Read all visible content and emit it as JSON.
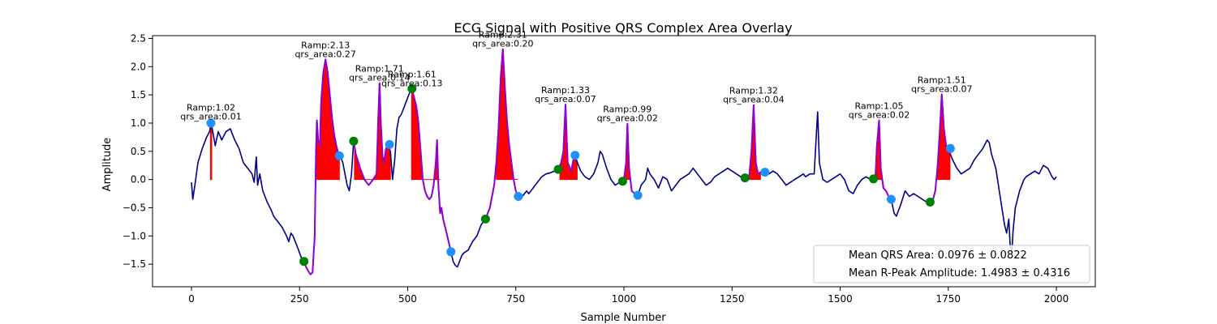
{
  "chart_data": {
    "type": "line",
    "title": "ECG Signal with Positive QRS Complex Area Overlay",
    "xlabel": "Sample Number",
    "ylabel": "Amplitude",
    "xlim": [
      -90,
      2090
    ],
    "ylim": [
      -1.9,
      2.55
    ],
    "xticks": [
      0,
      250,
      500,
      750,
      1000,
      1250,
      1500,
      1750,
      2000
    ],
    "xtick_labels": [
      "0",
      "250",
      "500",
      "750",
      "1000",
      "1250",
      "1500",
      "1750",
      "2000"
    ],
    "yticks": [
      -1.5,
      -1.0,
      -0.5,
      0.0,
      0.5,
      1.0,
      1.5,
      2.0,
      2.5
    ],
    "ytick_labels": [
      "−1.5",
      "−1.0",
      "−0.5",
      "0.0",
      "0.5",
      "1.0",
      "1.5",
      "2.0",
      "2.5"
    ],
    "grid": false,
    "colors": {
      "signal": "#00008b",
      "qrs_segment": "#9400d3",
      "area_fill": "#ff0000",
      "onset_marker": "#008000",
      "offset_marker": "#1e90ff"
    },
    "signal": {
      "name": "",
      "points": [
        [
          0,
          -0.05
        ],
        [
          3,
          -0.35
        ],
        [
          8,
          -0.1
        ],
        [
          15,
          0.3
        ],
        [
          25,
          0.55
        ],
        [
          35,
          0.75
        ],
        [
          42,
          0.85
        ],
        [
          45,
          1.0
        ],
        [
          48,
          0.9
        ],
        [
          55,
          0.6
        ],
        [
          62,
          0.85
        ],
        [
          70,
          0.7
        ],
        [
          80,
          0.85
        ],
        [
          90,
          0.9
        ],
        [
          100,
          0.7
        ],
        [
          110,
          0.55
        ],
        [
          120,
          0.3
        ],
        [
          130,
          0.2
        ],
        [
          140,
          0.1
        ],
        [
          145,
          -0.05
        ],
        [
          150,
          0.4
        ],
        [
          153,
          -0.1
        ],
        [
          158,
          0.1
        ],
        [
          165,
          -0.2
        ],
        [
          175,
          -0.4
        ],
        [
          185,
          -0.55
        ],
        [
          190,
          -0.65
        ],
        [
          200,
          -0.75
        ],
        [
          210,
          -0.85
        ],
        [
          220,
          -1.0
        ],
        [
          225,
          -1.1
        ],
        [
          230,
          -0.95
        ],
        [
          235,
          -1.0
        ],
        [
          240,
          -1.1
        ],
        [
          245,
          -1.2
        ],
        [
          250,
          -1.3
        ],
        [
          255,
          -1.4
        ],
        [
          260,
          -1.45
        ],
        [
          265,
          -1.55
        ],
        [
          270,
          -1.62
        ],
        [
          275,
          -1.68
        ],
        [
          280,
          -1.65
        ],
        [
          285,
          -1.0
        ],
        [
          288,
          0.5
        ],
        [
          290,
          1.05
        ],
        [
          293,
          0.7
        ],
        [
          297,
          0.6
        ],
        [
          300,
          1.4
        ],
        [
          305,
          1.9
        ],
        [
          310,
          2.13
        ],
        [
          315,
          1.9
        ],
        [
          320,
          1.5
        ],
        [
          325,
          1.1
        ],
        [
          330,
          0.8
        ],
        [
          335,
          0.6
        ],
        [
          340,
          0.45
        ],
        [
          345,
          0.4
        ],
        [
          350,
          0.3
        ],
        [
          355,
          0.1
        ],
        [
          360,
          -0.1
        ],
        [
          365,
          -0.2
        ],
        [
          370,
          0.1
        ],
        [
          375,
          0.68
        ],
        [
          380,
          0.45
        ],
        [
          390,
          0.2
        ],
        [
          400,
          0.0
        ],
        [
          410,
          -0.1
        ],
        [
          420,
          0.0
        ],
        [
          428,
          0.1
        ],
        [
          432,
          1.1
        ],
        [
          435,
          1.71
        ],
        [
          438,
          1.0
        ],
        [
          442,
          0.4
        ],
        [
          445,
          0.3
        ],
        [
          450,
          0.55
        ],
        [
          455,
          0.6
        ],
        [
          460,
          0.5
        ],
        [
          465,
          0.0
        ],
        [
          470,
          0.35
        ],
        [
          475,
          0.9
        ],
        [
          480,
          1.1
        ],
        [
          485,
          1.15
        ],
        [
          490,
          1.25
        ],
        [
          495,
          1.35
        ],
        [
          500,
          1.45
        ],
        [
          505,
          1.55
        ],
        [
          510,
          1.61
        ],
        [
          515,
          1.45
        ],
        [
          520,
          1.3
        ],
        [
          525,
          1.0
        ],
        [
          530,
          0.5
        ],
        [
          535,
          0.0
        ],
        [
          540,
          -0.2
        ],
        [
          545,
          -0.3
        ],
        [
          550,
          -0.35
        ],
        [
          555,
          -0.3
        ],
        [
          560,
          -0.1
        ],
        [
          565,
          0.3
        ],
        [
          568,
          0.7
        ],
        [
          571,
          -0.1
        ],
        [
          575,
          -0.6
        ],
        [
          578,
          -0.5
        ],
        [
          582,
          -0.7
        ],
        [
          590,
          -0.95
        ],
        [
          600,
          -1.28
        ],
        [
          605,
          -1.45
        ],
        [
          610,
          -1.52
        ],
        [
          615,
          -1.55
        ],
        [
          620,
          -1.45
        ],
        [
          625,
          -1.35
        ],
        [
          630,
          -1.3
        ],
        [
          640,
          -1.25
        ],
        [
          650,
          -1.1
        ],
        [
          660,
          -1.0
        ],
        [
          670,
          -0.8
        ],
        [
          680,
          -0.7
        ],
        [
          690,
          -0.5
        ],
        [
          700,
          -0.1
        ],
        [
          705,
          0.3
        ],
        [
          710,
          0.9
        ],
        [
          715,
          1.8
        ],
        [
          720,
          2.31
        ],
        [
          725,
          1.6
        ],
        [
          730,
          1.0
        ],
        [
          735,
          0.6
        ],
        [
          740,
          0.3
        ],
        [
          745,
          0.0
        ],
        [
          750,
          -0.2
        ],
        [
          755,
          -0.3
        ],
        [
          760,
          -0.28
        ],
        [
          765,
          -0.3
        ],
        [
          770,
          -0.25
        ],
        [
          775,
          -0.2
        ],
        [
          780,
          -0.25
        ],
        [
          790,
          -0.15
        ],
        [
          800,
          -0.05
        ],
        [
          810,
          0.05
        ],
        [
          820,
          0.1
        ],
        [
          830,
          0.12
        ],
        [
          840,
          0.15
        ],
        [
          848,
          0.18
        ],
        [
          855,
          0.3
        ],
        [
          860,
          0.5
        ],
        [
          865,
          1.33
        ],
        [
          870,
          0.3
        ],
        [
          878,
          0.15
        ],
        [
          885,
          0.42
        ],
        [
          890,
          0.35
        ],
        [
          900,
          0.15
        ],
        [
          910,
          0.05
        ],
        [
          920,
          0.0
        ],
        [
          930,
          0.1
        ],
        [
          940,
          0.3
        ],
        [
          945,
          0.5
        ],
        [
          950,
          0.45
        ],
        [
          960,
          0.2
        ],
        [
          970,
          0.0
        ],
        [
          980,
          -0.1
        ],
        [
          990,
          -0.05
        ],
        [
          997,
          -0.03
        ],
        [
          1000,
          0.0
        ],
        [
          1005,
          0.3
        ],
        [
          1008,
          0.99
        ],
        [
          1012,
          0.2
        ],
        [
          1018,
          -0.2
        ],
        [
          1025,
          -0.25
        ],
        [
          1032,
          -0.28
        ],
        [
          1040,
          -0.1
        ],
        [
          1050,
          0.0
        ],
        [
          1055,
          0.2
        ],
        [
          1060,
          0.1
        ],
        [
          1070,
          0.0
        ],
        [
          1080,
          -0.15
        ],
        [
          1090,
          0.05
        ],
        [
          1100,
          0.0
        ],
        [
          1110,
          -0.2
        ],
        [
          1120,
          -0.1
        ],
        [
          1130,
          0.0
        ],
        [
          1140,
          0.05
        ],
        [
          1150,
          0.1
        ],
        [
          1160,
          0.2
        ],
        [
          1170,
          0.1
        ],
        [
          1180,
          0.0
        ],
        [
          1190,
          -0.1
        ],
        [
          1200,
          -0.05
        ],
        [
          1210,
          0.05
        ],
        [
          1220,
          0.1
        ],
        [
          1230,
          0.15
        ],
        [
          1240,
          0.2
        ],
        [
          1250,
          0.15
        ],
        [
          1260,
          0.1
        ],
        [
          1270,
          0.05
        ],
        [
          1280,
          0.03
        ],
        [
          1290,
          0.08
        ],
        [
          1295,
          0.5
        ],
        [
          1300,
          1.32
        ],
        [
          1305,
          0.3
        ],
        [
          1310,
          0.1
        ],
        [
          1320,
          0.15
        ],
        [
          1325,
          0.13
        ],
        [
          1335,
          0.1
        ],
        [
          1345,
          0.15
        ],
        [
          1355,
          0.1
        ],
        [
          1365,
          0.0
        ],
        [
          1375,
          -0.1
        ],
        [
          1385,
          -0.05
        ],
        [
          1395,
          0.0
        ],
        [
          1405,
          0.05
        ],
        [
          1415,
          0.1
        ],
        [
          1420,
          0.05
        ],
        [
          1430,
          0.1
        ],
        [
          1440,
          0.1
        ],
        [
          1445,
          0.8
        ],
        [
          1448,
          1.2
        ],
        [
          1452,
          0.3
        ],
        [
          1460,
          0.0
        ],
        [
          1470,
          -0.05
        ],
        [
          1480,
          0.0
        ],
        [
          1490,
          0.05
        ],
        [
          1500,
          0.1
        ],
        [
          1510,
          0.0
        ],
        [
          1520,
          -0.2
        ],
        [
          1530,
          -0.25
        ],
        [
          1540,
          -0.1
        ],
        [
          1550,
          0.0
        ],
        [
          1560,
          0.05
        ],
        [
          1570,
          0.0
        ],
        [
          1577,
          0.01
        ],
        [
          1582,
          0.1
        ],
        [
          1585,
          0.6
        ],
        [
          1590,
          1.05
        ],
        [
          1594,
          0.2
        ],
        [
          1600,
          -0.15
        ],
        [
          1606,
          -0.2
        ],
        [
          1612,
          -0.3
        ],
        [
          1618,
          -0.35
        ],
        [
          1625,
          -0.6
        ],
        [
          1630,
          -0.65
        ],
        [
          1640,
          -0.45
        ],
        [
          1650,
          -0.2
        ],
        [
          1660,
          -0.3
        ],
        [
          1670,
          -0.25
        ],
        [
          1680,
          -0.3
        ],
        [
          1690,
          -0.35
        ],
        [
          1700,
          -0.4
        ],
        [
          1708,
          -0.4
        ],
        [
          1715,
          -0.35
        ],
        [
          1720,
          -0.2
        ],
        [
          1725,
          0.2
        ],
        [
          1730,
          0.8
        ],
        [
          1735,
          1.51
        ],
        [
          1740,
          0.9
        ],
        [
          1745,
          0.6
        ],
        [
          1750,
          0.55
        ],
        [
          1755,
          0.45
        ],
        [
          1760,
          0.35
        ],
        [
          1770,
          0.2
        ],
        [
          1780,
          0.1
        ],
        [
          1790,
          0.15
        ],
        [
          1800,
          0.2
        ],
        [
          1810,
          0.35
        ],
        [
          1820,
          0.45
        ],
        [
          1830,
          0.55
        ],
        [
          1840,
          0.7
        ],
        [
          1845,
          0.65
        ],
        [
          1850,
          0.45
        ],
        [
          1860,
          0.2
        ],
        [
          1870,
          -0.3
        ],
        [
          1875,
          -0.55
        ],
        [
          1880,
          -0.8
        ],
        [
          1885,
          -0.95
        ],
        [
          1890,
          -0.7
        ],
        [
          1893,
          -1.15
        ],
        [
          1897,
          -1.3
        ],
        [
          1900,
          -0.9
        ],
        [
          1905,
          -0.5
        ],
        [
          1910,
          -0.35
        ],
        [
          1915,
          -0.2
        ],
        [
          1920,
          -0.1
        ],
        [
          1925,
          0.0
        ],
        [
          1930,
          0.05
        ],
        [
          1940,
          0.1
        ],
        [
          1950,
          0.15
        ],
        [
          1960,
          0.1
        ],
        [
          1970,
          0.25
        ],
        [
          1980,
          0.2
        ],
        [
          1990,
          0.05
        ],
        [
          1995,
          0.0
        ],
        [
          2000,
          0.05
        ]
      ]
    },
    "qrs_segments": [
      {
        "start": 260,
        "end": 345
      },
      {
        "start": 375,
        "end": 460
      },
      {
        "start": 505,
        "end": 600
      },
      {
        "start": 680,
        "end": 760
      },
      {
        "start": 850,
        "end": 890
      },
      {
        "start": 997,
        "end": 1032
      },
      {
        "start": 1280,
        "end": 1325
      },
      {
        "start": 1577,
        "end": 1618
      },
      {
        "start": 1708,
        "end": 1755
      }
    ],
    "area_regions": [
      {
        "start": 44,
        "end": 47
      },
      {
        "start": 288,
        "end": 342
      },
      {
        "start": 377,
        "end": 460
      },
      {
        "start": 509,
        "end": 575
      },
      {
        "start": 705,
        "end": 755
      },
      {
        "start": 852,
        "end": 892
      },
      {
        "start": 1000,
        "end": 1014
      },
      {
        "start": 1283,
        "end": 1316
      },
      {
        "start": 1582,
        "end": 1595
      },
      {
        "start": 1725,
        "end": 1754
      }
    ],
    "onset_markers": [
      [
        260,
        -1.45
      ],
      [
        375,
        0.68
      ],
      [
        510,
        1.61
      ],
      [
        680,
        -0.7
      ],
      [
        848,
        0.18
      ],
      [
        997,
        -0.03
      ],
      [
        1280,
        0.03
      ],
      [
        1577,
        0.01
      ],
      [
        1708,
        -0.4
      ]
    ],
    "offset_markers": [
      [
        45,
        1.0
      ],
      [
        342,
        0.42
      ],
      [
        458,
        0.62
      ],
      [
        600,
        -1.28
      ],
      [
        756,
        -0.3
      ],
      [
        887,
        0.43
      ],
      [
        1032,
        -0.28
      ],
      [
        1326,
        0.13
      ],
      [
        1618,
        -0.35
      ],
      [
        1755,
        0.55
      ]
    ],
    "annotations": [
      {
        "x": 45,
        "y": 1.02,
        "lines": [
          "Ramp:1.02",
          "qrs_area:0.01"
        ]
      },
      {
        "x": 310,
        "y": 2.13,
        "lines": [
          "Ramp:2.13",
          "qrs_area:0.27"
        ]
      },
      {
        "x": 435,
        "y": 1.71,
        "lines": [
          "Ramp:1.71",
          "qrs_area:0.14"
        ]
      },
      {
        "x": 510,
        "y": 1.61,
        "lines": [
          "Ramp:1.61",
          "qrs_area:0.13"
        ]
      },
      {
        "x": 720,
        "y": 2.31,
        "lines": [
          "Ramp:2.31",
          "qrs_area:0.20"
        ]
      },
      {
        "x": 865,
        "y": 1.33,
        "lines": [
          "Ramp:1.33",
          "qrs_area:0.07"
        ]
      },
      {
        "x": 1008,
        "y": 0.99,
        "lines": [
          "Ramp:0.99",
          "qrs_area:0.02"
        ]
      },
      {
        "x": 1300,
        "y": 1.32,
        "lines": [
          "Ramp:1.32",
          "qrs_area:0.04"
        ]
      },
      {
        "x": 1590,
        "y": 1.05,
        "lines": [
          "Ramp:1.05",
          "qrs_area:0.02"
        ]
      },
      {
        "x": 1735,
        "y": 1.51,
        "lines": [
          "Ramp:1.51",
          "qrs_area:0.07"
        ]
      }
    ],
    "legend": {
      "placement": "lower right",
      "entries": [
        "Mean QRS Area: 0.0976 ± 0.0822",
        "Mean R-Peak Amplitude: 1.4983 ± 0.4316"
      ]
    }
  }
}
